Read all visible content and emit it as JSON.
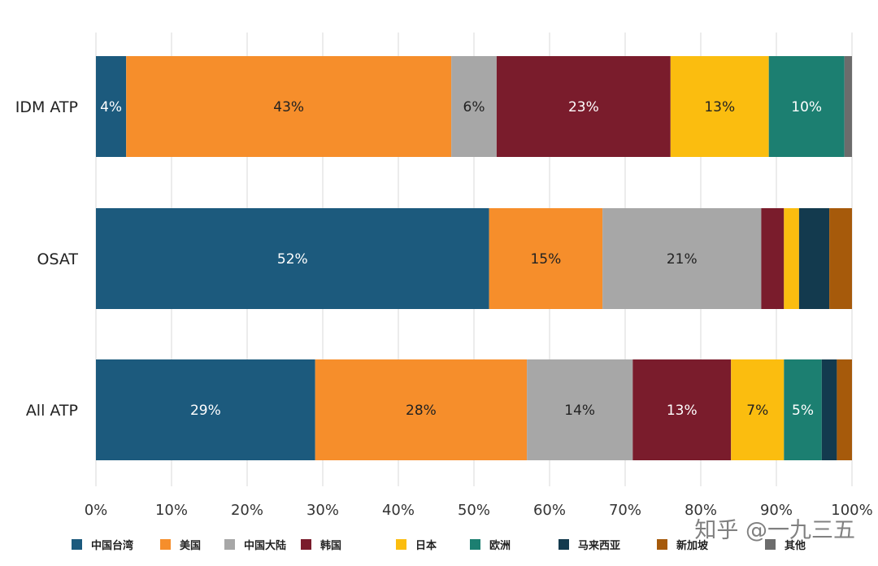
{
  "chart_data": {
    "type": "bar",
    "orientation": "horizontal",
    "stacked": true,
    "title": "",
    "xlabel": "",
    "ylabel": "",
    "xlim": [
      0,
      100
    ],
    "x_ticks": [
      "0%",
      "10%",
      "20%",
      "30%",
      "40%",
      "50%",
      "60%",
      "70%",
      "80%",
      "90%",
      "100%"
    ],
    "grid": "vertical",
    "legend_position": "bottom",
    "categories": [
      "IDM ATP",
      "OSAT",
      "All ATP"
    ],
    "series": [
      {
        "name": "中国台湾",
        "color": "#1c5a7d",
        "values": [
          4,
          52,
          29
        ],
        "labels": [
          "4%",
          "52%",
          "29%"
        ],
        "label_color": "#ffffff"
      },
      {
        "name": "美国",
        "color": "#f68e2b",
        "values": [
          43,
          15,
          28
        ],
        "labels": [
          "43%",
          "15%",
          "28%"
        ],
        "label_color": "#222222"
      },
      {
        "name": "中国大陆",
        "color": "#a7a7a7",
        "values": [
          6,
          21,
          14
        ],
        "labels": [
          "6%",
          "21%",
          "14%"
        ],
        "label_color": "#222222"
      },
      {
        "name": "韩国",
        "color": "#7a1c2c",
        "values": [
          23,
          3,
          13
        ],
        "labels": [
          "23%",
          "",
          "13%"
        ],
        "label_color": "#ffffff"
      },
      {
        "name": "日本",
        "color": "#fbbd0f",
        "values": [
          13,
          2,
          7
        ],
        "labels": [
          "13%",
          "",
          "7%"
        ],
        "label_color": "#222222"
      },
      {
        "name": "欧洲",
        "color": "#1c7f71",
        "values": [
          10,
          0,
          5
        ],
        "labels": [
          "10%",
          "",
          "5%"
        ],
        "label_color": "#ffffff"
      },
      {
        "name": "马来西亚",
        "color": "#133a4e",
        "values": [
          0,
          4,
          2
        ],
        "labels": [
          "",
          "",
          ""
        ],
        "label_color": "#ffffff"
      },
      {
        "name": "新加坡",
        "color": "#a65a0b",
        "values": [
          0,
          3,
          2
        ],
        "labels": [
          "",
          "",
          ""
        ],
        "label_color": "#ffffff"
      },
      {
        "name": "其他",
        "color": "#6c6c6c",
        "values": [
          1,
          0,
          0
        ],
        "labels": [
          "",
          "",
          ""
        ],
        "label_color": "#ffffff"
      }
    ]
  },
  "watermark": "知乎 @一九三五"
}
